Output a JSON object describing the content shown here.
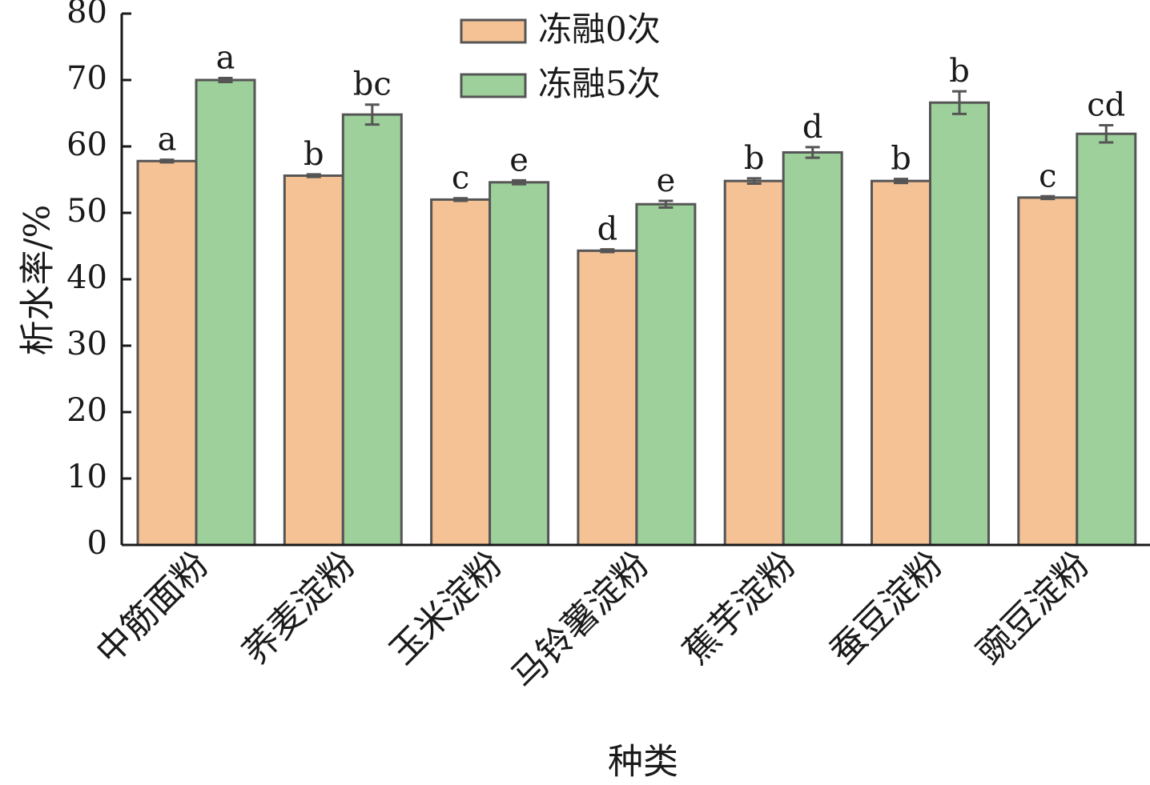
{
  "chart_data": {
    "type": "bar",
    "xlabel": "种类",
    "ylabel": "析水率/%",
    "ylim": [
      0,
      80
    ],
    "yticks": [
      0,
      10,
      20,
      30,
      40,
      50,
      60,
      70,
      80
    ],
    "categories": [
      "中筋面粉",
      "荞麦淀粉",
      "玉米淀粉",
      "马铃薯淀粉",
      "蕉芋淀粉",
      "蚕豆淀粉",
      "豌豆淀粉"
    ],
    "legend_position": "top-center",
    "series": [
      {
        "name": "冻融0次",
        "color": "#f5c295",
        "values": [
          57.8,
          55.6,
          52.0,
          44.3,
          54.8,
          54.8,
          52.3
        ],
        "errors": [
          0.2,
          0.2,
          0.2,
          0.2,
          0.4,
          0.3,
          0.2
        ],
        "labels": [
          "a",
          "b",
          "c",
          "d",
          "b",
          "b",
          "c"
        ]
      },
      {
        "name": "冻融5次",
        "color": "#9dd09a",
        "values": [
          70.0,
          64.8,
          54.6,
          51.3,
          59.1,
          66.6,
          61.9
        ],
        "errors": [
          0.3,
          1.5,
          0.3,
          0.5,
          0.8,
          1.7,
          1.3
        ],
        "labels": [
          "a",
          "bc",
          "e",
          "e",
          "d",
          "b",
          "cd"
        ]
      }
    ]
  }
}
